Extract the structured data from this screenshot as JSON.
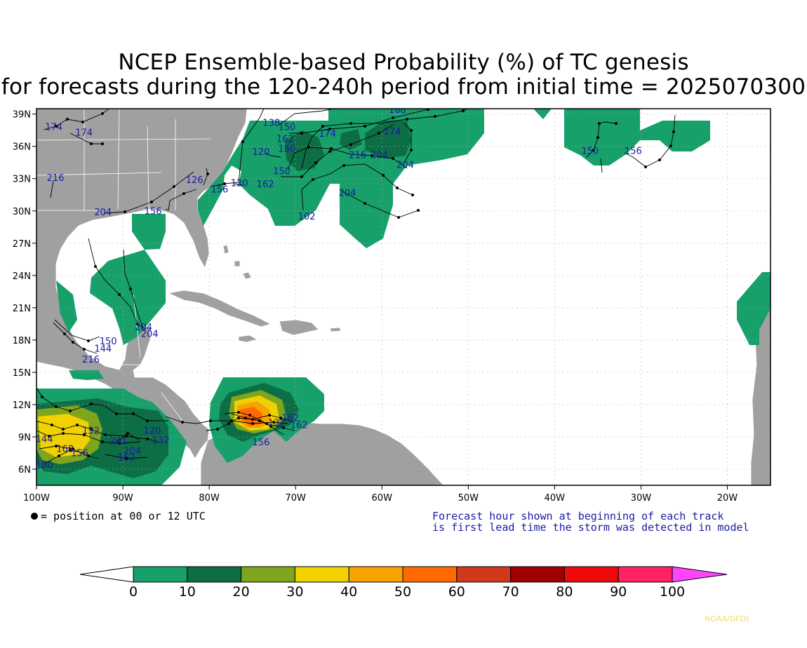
{
  "title": {
    "line1": "NCEP Ensemble-based Probability (%) of TC genesis",
    "line2": "for forecasts during the 120-240h period from initial time = 2025070300"
  },
  "axes": {
    "lat_labels": [
      "39N",
      "36N",
      "33N",
      "30N",
      "27N",
      "24N",
      "21N",
      "18N",
      "15N",
      "12N",
      "9N",
      "6N"
    ],
    "lat_values": [
      39,
      36,
      33,
      30,
      27,
      24,
      21,
      18,
      15,
      12,
      9,
      6
    ],
    "lon_labels": [
      "100W",
      "90W",
      "80W",
      "70W",
      "60W",
      "50W",
      "40W",
      "30W",
      "20W"
    ],
    "lon_values": [
      -100,
      -90,
      -80,
      -70,
      -60,
      -50,
      -40,
      -30,
      -20
    ],
    "lat_range": [
      4.5,
      39.5
    ],
    "lon_range": [
      -100,
      -15
    ]
  },
  "forecast_hour_labels": [
    {
      "text": "174",
      "lon": -98,
      "lat": 37.5
    },
    {
      "text": "174",
      "lon": -94.5,
      "lat": 37
    },
    {
      "text": "216",
      "lon": -97.8,
      "lat": 32.8
    },
    {
      "text": "204",
      "lon": -92.3,
      "lat": 29.6
    },
    {
      "text": "156",
      "lon": -86.5,
      "lat": 29.7
    },
    {
      "text": "126",
      "lon": -81.7,
      "lat": 32.6
    },
    {
      "text": "156",
      "lon": -78.8,
      "lat": 31.7
    },
    {
      "text": "120",
      "lon": -76.5,
      "lat": 32.3
    },
    {
      "text": "120",
      "lon": -74,
      "lat": 35.2
    },
    {
      "text": "180",
      "lon": -71,
      "lat": 35.5
    },
    {
      "text": "150",
      "lon": -71.6,
      "lat": 33.4
    },
    {
      "text": "162",
      "lon": -73.5,
      "lat": 32.2
    },
    {
      "text": "138",
      "lon": -72.8,
      "lat": 37.9
    },
    {
      "text": "150",
      "lon": -71,
      "lat": 37.5
    },
    {
      "text": "162",
      "lon": -71.2,
      "lat": 36.4
    },
    {
      "text": "174",
      "lon": -66.3,
      "lat": 36.9
    },
    {
      "text": "174",
      "lon": -58.8,
      "lat": 37.1
    },
    {
      "text": "168",
      "lon": -58.2,
      "lat": 39.1
    },
    {
      "text": "216",
      "lon": -62.8,
      "lat": 34.9
    },
    {
      "text": "204",
      "lon": -60.3,
      "lat": 34.9
    },
    {
      "text": "204",
      "lon": -57.3,
      "lat": 34
    },
    {
      "text": "204",
      "lon": -64,
      "lat": 31.4
    },
    {
      "text": "102",
      "lon": -68.7,
      "lat": 29.2
    },
    {
      "text": "150",
      "lon": -35.9,
      "lat": 35.3
    },
    {
      "text": "156",
      "lon": -30.9,
      "lat": 35.3
    },
    {
      "text": "204",
      "lon": -87.6,
      "lat": 18.9
    },
    {
      "text": "204",
      "lon": -86.9,
      "lat": 18.3
    },
    {
      "text": "150",
      "lon": -91.7,
      "lat": 17.6
    },
    {
      "text": "144",
      "lon": -92.3,
      "lat": 16.9
    },
    {
      "text": "216",
      "lon": -93.7,
      "lat": 15.9
    },
    {
      "text": "132",
      "lon": -93.7,
      "lat": 9.3
    },
    {
      "text": "144",
      "lon": -99.1,
      "lat": 8.5
    },
    {
      "text": "156",
      "lon": -95,
      "lat": 7.2
    },
    {
      "text": "168",
      "lon": -96.7,
      "lat": 7.6
    },
    {
      "text": "180",
      "lon": -99.1,
      "lat": 6.1
    },
    {
      "text": "201",
      "lon": -90.5,
      "lat": 8.3
    },
    {
      "text": "204",
      "lon": -88.9,
      "lat": 7.4
    },
    {
      "text": "162",
      "lon": -89.6,
      "lat": 6.8
    },
    {
      "text": "132",
      "lon": -85.6,
      "lat": 8.4
    },
    {
      "text": "120",
      "lon": -86.6,
      "lat": 9.3
    },
    {
      "text": "162",
      "lon": -70.6,
      "lat": 10.5
    },
    {
      "text": "132",
      "lon": -72.2,
      "lat": 10
    },
    {
      "text": "156",
      "lon": -74,
      "lat": 8.2
    },
    {
      "text": "162",
      "lon": -69.6,
      "lat": 9.8
    }
  ],
  "legend": {
    "dot_text": "= position at 00 or 12 UTC",
    "note_line1": "Forecast hour shown at beginning of each track",
    "note_line2": "is first lead time the storm was detected in model"
  },
  "colorbar": {
    "ticks": [
      "0",
      "10",
      "20",
      "30",
      "40",
      "50",
      "60",
      "70",
      "80",
      "90",
      "100"
    ],
    "colors": [
      "#ffffff",
      "#17a06a",
      "#0d6e45",
      "#7ea51c",
      "#f2d100",
      "#f8a400",
      "#ff6a00",
      "#d2381a",
      "#a00000",
      "#ee0a0a",
      "#ff2266",
      "#ff44ff"
    ]
  },
  "colors": {
    "land": "#a0a0a0",
    "ocean": "#ffffff",
    "prob_10": "#17a06a",
    "prob_20": "#0d6e45",
    "prob_30": "#7ea51c",
    "prob_40": "#f2d100",
    "prob_50": "#f8a400",
    "prob_60": "#ff6a00"
  },
  "credit": "NOAA/GFDL"
}
